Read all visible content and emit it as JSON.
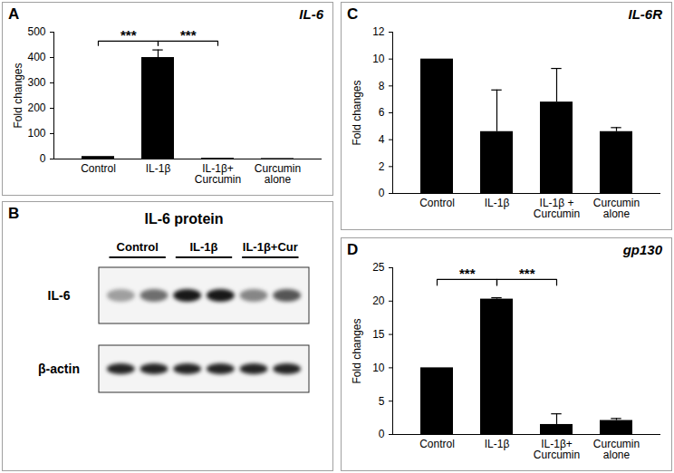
{
  "chart_data": [
    {
      "panel": "A",
      "type": "bar",
      "title": "IL-6",
      "y_label": "Fold changes",
      "categories": [
        "Control",
        "IL-1β",
        "IL-1β+\nCurcumin",
        "Curcumin\nalone"
      ],
      "values": [
        10,
        400,
        3,
        2
      ],
      "errors": [
        0,
        30,
        0,
        0
      ],
      "color": "#000000",
      "ylim": [
        0,
        500
      ],
      "yticks": [
        0,
        100,
        200,
        300,
        400,
        500
      ],
      "annotations": [
        {
          "from": "Control",
          "to": "IL-1β",
          "label": "***"
        },
        {
          "from": "IL-1β",
          "to": "IL-1β+\nCurcumin",
          "label": "***"
        }
      ]
    },
    {
      "panel": "B",
      "type": "blot",
      "title": "IL-6 protein",
      "groups": [
        "Control",
        "IL-1β",
        "IL-1β+Cur"
      ],
      "rows": [
        {
          "name": "IL-6",
          "intensities": [
            0.35,
            0.55,
            0.9,
            0.9,
            0.45,
            0.65
          ]
        },
        {
          "name": "β-actin",
          "intensities": [
            0.85,
            0.85,
            0.85,
            0.85,
            0.85,
            0.85
          ]
        }
      ]
    },
    {
      "panel": "C",
      "type": "bar",
      "title": "IL-6R",
      "y_label": "Fold changes",
      "categories": [
        "Control",
        "IL-1β",
        "IL-1β +\nCurcumin",
        "Curcumin\nalone"
      ],
      "values": [
        10,
        4.6,
        6.8,
        4.6
      ],
      "errors": [
        0,
        3.1,
        2.5,
        0.3
      ],
      "color": "#000000",
      "ylim": [
        0,
        12
      ],
      "yticks": [
        0,
        2,
        4,
        6,
        8,
        10,
        12
      ]
    },
    {
      "panel": "D",
      "type": "bar",
      "title": "gp130",
      "y_label": "Fold changes",
      "categories": [
        "Control",
        "IL-1β",
        "IL-1β+\nCurcumin",
        "Curcumin\nalone"
      ],
      "values": [
        10,
        20.3,
        1.5,
        2.1
      ],
      "errors": [
        0,
        0.2,
        1.6,
        0.3
      ],
      "color": "#000000",
      "ylim": [
        0,
        25
      ],
      "yticks": [
        0,
        5,
        10,
        15,
        20,
        25
      ],
      "annotations": [
        {
          "from": "Control",
          "to": "IL-1β",
          "label": "***"
        },
        {
          "from": "IL-1β",
          "to": "IL-1β+\nCurcumin",
          "label": "***"
        }
      ]
    }
  ]
}
